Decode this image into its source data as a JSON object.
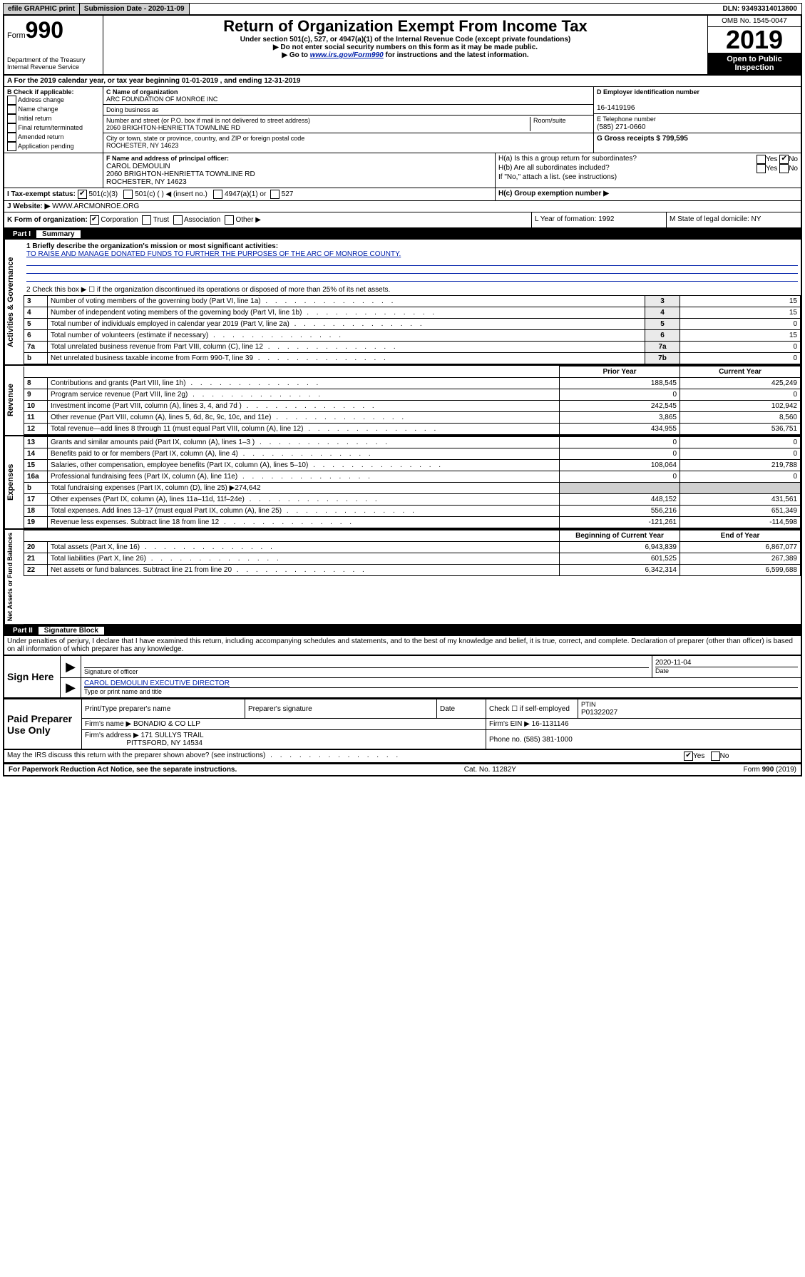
{
  "topbar": {
    "efile": "efile GRAPHIC print",
    "sub_label": "Submission Date - 2020-11-09",
    "dln": "DLN: 93493314013800"
  },
  "header": {
    "form_word": "Form",
    "form_num": "990",
    "dept": "Department of the Treasury",
    "irs": "Internal Revenue Service",
    "title": "Return of Organization Exempt From Income Tax",
    "subtitle": "Under section 501(c), 527, or 4947(a)(1) of the Internal Revenue Code (except private foundations)",
    "note1": "▶ Do not enter social security numbers on this form as it may be made public.",
    "note2_pre": "▶ Go to ",
    "note2_link": "www.irs.gov/Form990",
    "note2_post": " for instructions and the latest information.",
    "omb": "OMB No. 1545-0047",
    "year": "2019",
    "open": "Open to Public Inspection"
  },
  "period": {
    "line_a": "A For the 2019 calendar year, or tax year beginning 01-01-2019  , and ending 12-31-2019"
  },
  "box_b": {
    "title": "B Check if applicable:",
    "opts": [
      "Address change",
      "Name change",
      "Initial return",
      "Final return/terminated",
      "Amended return",
      "Application pending"
    ]
  },
  "box_c": {
    "label_name": "C Name of organization",
    "org": "ARC FOUNDATION OF MONROE INC",
    "dba_label": "Doing business as",
    "addr_label": "Number and street (or P.O. box if mail is not delivered to street address)",
    "addr": "2060 BRIGHTON-HENRIETTA TOWNLINE RD",
    "room_label": "Room/suite",
    "city_label": "City or town, state or province, country, and ZIP or foreign postal code",
    "city": "ROCHESTER, NY  14623"
  },
  "box_d": {
    "label": "D Employer identification number",
    "ein": "16-1419196"
  },
  "box_e": {
    "label": "E Telephone number",
    "phone": "(585) 271-0660"
  },
  "box_g": {
    "label": "G Gross receipts $ 799,595"
  },
  "box_f": {
    "label": "F  Name and address of principal officer:",
    "name": "CAROL DEMOULIN",
    "addr": "2060 BRIGHTON-HENRIETTA TOWNLINE RD",
    "city": "ROCHESTER, NY  14623"
  },
  "box_h": {
    "a": "H(a)  Is this a group return for subordinates?",
    "b": "H(b)  Are all subordinates included?",
    "b_note": "If \"No,\" attach a list. (see instructions)",
    "c": "H(c)  Group exemption number ▶",
    "yes": "Yes",
    "no": "No"
  },
  "line_i": {
    "label": "I     Tax-exempt status:",
    "o1": "501(c)(3)",
    "o2": "501(c) (   ) ◀ (insert no.)",
    "o3": "4947(a)(1) or",
    "o4": "527"
  },
  "line_j": {
    "label": "J    Website: ▶",
    "value": "WWW.ARCMONROE.ORG"
  },
  "line_k": {
    "label": "K Form of organization:",
    "opts": [
      "Corporation",
      "Trust",
      "Association",
      "Other ▶"
    ],
    "l_label": "L Year of formation: 1992",
    "m_label": "M State of legal domicile: NY"
  },
  "part1": {
    "num": "Part I",
    "title": "Summary"
  },
  "summary": {
    "l1_label": "1  Briefly describe the organization's mission or most significant activities:",
    "l1_text": "TO RAISE AND MANAGE DONATED FUNDS TO FURTHER THE PURPOSES OF THE ARC OF MONROE COUNTY.",
    "l2": "2   Check this box ▶ ☐  if the organization discontinued its operations or disposed of more than 25% of its net assets.",
    "vtab_ag": "Activities & Governance",
    "vtab_rev": "Revenue",
    "vtab_exp": "Expenses",
    "vtab_net": "Net Assets or Fund Balances",
    "col_prior": "Prior Year",
    "col_current": "Current Year",
    "col_boc": "Beginning of Current Year",
    "col_eoy": "End of Year",
    "rows_gov": [
      {
        "n": "3",
        "d": "Number of voting members of the governing body (Part VI, line 1a)",
        "box": "3",
        "v": "15"
      },
      {
        "n": "4",
        "d": "Number of independent voting members of the governing body (Part VI, line 1b)",
        "box": "4",
        "v": "15"
      },
      {
        "n": "5",
        "d": "Total number of individuals employed in calendar year 2019 (Part V, line 2a)",
        "box": "5",
        "v": "0"
      },
      {
        "n": "6",
        "d": "Total number of volunteers (estimate if necessary)",
        "box": "6",
        "v": "15"
      },
      {
        "n": "7a",
        "d": "Total unrelated business revenue from Part VIII, column (C), line 12",
        "box": "7a",
        "v": "0"
      },
      {
        "n": "b",
        "d": "Net unrelated business taxable income from Form 990-T, line 39",
        "box": "7b",
        "v": "0"
      }
    ],
    "rows_rev": [
      {
        "n": "8",
        "d": "Contributions and grants (Part VIII, line 1h)",
        "p": "188,545",
        "c": "425,249"
      },
      {
        "n": "9",
        "d": "Program service revenue (Part VIII, line 2g)",
        "p": "0",
        "c": "0"
      },
      {
        "n": "10",
        "d": "Investment income (Part VIII, column (A), lines 3, 4, and 7d )",
        "p": "242,545",
        "c": "102,942"
      },
      {
        "n": "11",
        "d": "Other revenue (Part VIII, column (A), lines 5, 6d, 8c, 9c, 10c, and 11e)",
        "p": "3,865",
        "c": "8,560"
      },
      {
        "n": "12",
        "d": "Total revenue—add lines 8 through 11 (must equal Part VIII, column (A), line 12)",
        "p": "434,955",
        "c": "536,751"
      }
    ],
    "rows_exp": [
      {
        "n": "13",
        "d": "Grants and similar amounts paid (Part IX, column (A), lines 1–3 )",
        "p": "0",
        "c": "0"
      },
      {
        "n": "14",
        "d": "Benefits paid to or for members (Part IX, column (A), line 4)",
        "p": "0",
        "c": "0"
      },
      {
        "n": "15",
        "d": "Salaries, other compensation, employee benefits (Part IX, column (A), lines 5–10)",
        "p": "108,064",
        "c": "219,788"
      },
      {
        "n": "16a",
        "d": "Professional fundraising fees (Part IX, column (A), line 11e)",
        "p": "0",
        "c": "0"
      },
      {
        "n": "b",
        "d": "Total fundraising expenses (Part IX, column (D), line 25) ▶274,642",
        "p": "",
        "c": ""
      },
      {
        "n": "17",
        "d": "Other expenses (Part IX, column (A), lines 11a–11d, 11f–24e)",
        "p": "448,152",
        "c": "431,561"
      },
      {
        "n": "18",
        "d": "Total expenses. Add lines 13–17 (must equal Part IX, column (A), line 25)",
        "p": "556,216",
        "c": "651,349"
      },
      {
        "n": "19",
        "d": "Revenue less expenses. Subtract line 18 from line 12",
        "p": "-121,261",
        "c": "-114,598"
      }
    ],
    "rows_net": [
      {
        "n": "20",
        "d": "Total assets (Part X, line 16)",
        "p": "6,943,839",
        "c": "6,867,077"
      },
      {
        "n": "21",
        "d": "Total liabilities (Part X, line 26)",
        "p": "601,525",
        "c": "267,389"
      },
      {
        "n": "22",
        "d": "Net assets or fund balances. Subtract line 21 from line 20",
        "p": "6,342,314",
        "c": "6,599,688"
      }
    ]
  },
  "part2": {
    "num": "Part II",
    "title": "Signature Block",
    "decl": "Under penalties of perjury, I declare that I have examined this return, including accompanying schedules and statements, and to the best of my knowledge and belief, it is true, correct, and complete. Declaration of preparer (other than officer) is based on all information of which preparer has any knowledge."
  },
  "sign": {
    "here": "Sign Here",
    "sig_label": "Signature of officer",
    "date": "2020-11-04",
    "date_label": "Date",
    "name": "CAROL DEMOULIN  EXECUTIVE DIRECTOR",
    "name_label": "Type or print name and title"
  },
  "paid": {
    "title": "Paid Preparer Use Only",
    "h_name": "Print/Type preparer's name",
    "h_sig": "Preparer's signature",
    "h_date": "Date",
    "h_check": "Check ☐ if self-employed",
    "h_ptin": "PTIN",
    "ptin": "P01322027",
    "firm_label": "Firm's name    ▶",
    "firm": "BONADIO & CO LLP",
    "ein_label": "Firm's EIN ▶",
    "ein": "16-1131146",
    "addr_label": "Firm's address ▶",
    "addr": "171 SULLYS TRAIL",
    "city": "PITTSFORD, NY  14534",
    "phone_label": "Phone no.",
    "phone": "(585) 381-1000"
  },
  "discuss": {
    "q": "May the IRS discuss this return with the preparer shown above? (see instructions)",
    "yes": "Yes",
    "no": "No"
  },
  "footer": {
    "pra": "For Paperwork Reduction Act Notice, see the separate instructions.",
    "cat": "Cat. No. 11282Y",
    "form": "Form 990 (2019)"
  }
}
